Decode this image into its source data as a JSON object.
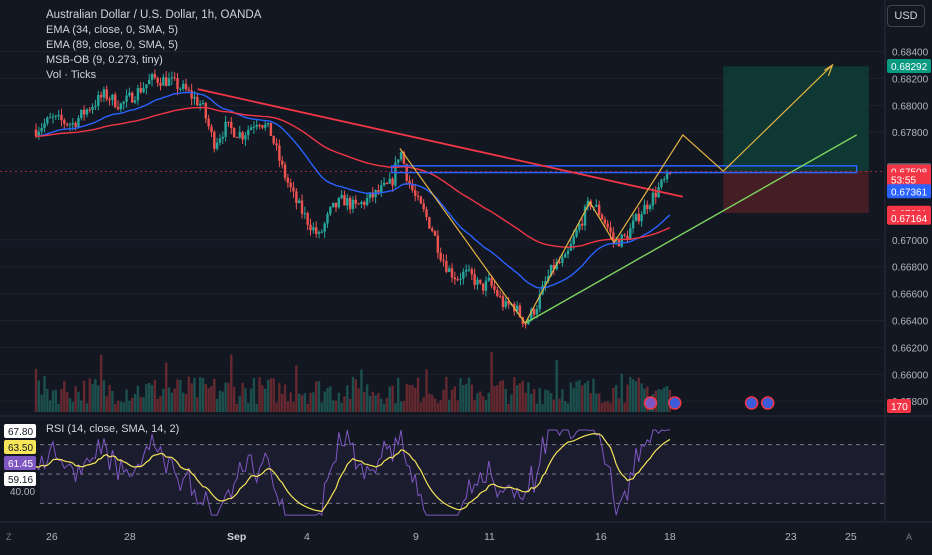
{
  "header": {
    "title": "Australian Dollar / U.S. Dollar, 1h, OANDA",
    "indicators": [
      "EMA (34, close, 0, SMA, 5)",
      "EMA (89, close, 0, SMA, 5)",
      "MSB-OB (9, 0.273, tiny)",
      "Vol · Ticks"
    ],
    "currency_button": "USD"
  },
  "rsi": {
    "label": "RSI (14, close, SMA, 14, 2)",
    "badges": [
      {
        "text": "67.80",
        "value": 67.8,
        "bg": "#ffffff",
        "fg": "#131722"
      },
      {
        "text": "63.50",
        "value": 63.5,
        "bg": "#f7e55a",
        "fg": "#131722"
      },
      {
        "text": "61.45",
        "value": 61.45,
        "bg": "#7e57c2",
        "fg": "#ffffff"
      },
      {
        "text": "59.16",
        "value": 59.16,
        "bg": "#ffffff",
        "fg": "#131722"
      }
    ],
    "tick": {
      "text": "40.00",
      "value": 40
    }
  },
  "corners": {
    "left": "Z",
    "right": "A"
  },
  "colors": {
    "background": "#131722",
    "up": "#26a69a",
    "down": "#ef5350",
    "ema34": "#2962ff",
    "ema89": "#f23645",
    "rsi": "#7e57c2",
    "rsi_ma": "#f7e55a",
    "zone": "#2962ff",
    "target": "#0f3b36",
    "stop": "#4a1e26"
  },
  "chart_data": {
    "type": "candlestick",
    "symbol": "AUDUSD",
    "timeframe": "1h",
    "x_ticks": [
      "26",
      "28",
      "Sep",
      "4",
      "9",
      "11",
      "16",
      "18",
      "23",
      "25"
    ],
    "y_ticks": [
      "0.68400",
      "0.68200",
      "0.68000",
      "0.67800",
      "0.67000",
      "0.66800",
      "0.66600",
      "0.66400",
      "0.66200",
      "0.66000",
      "0.65800"
    ],
    "ylim": [
      0.6572,
      0.6856
    ],
    "price_path": [
      [
        0,
        0.6782
      ],
      [
        4,
        0.679
      ],
      [
        9,
        0.6786
      ],
      [
        13,
        0.6798
      ],
      [
        17,
        0.6808
      ],
      [
        21,
        0.68
      ],
      [
        25,
        0.681
      ],
      [
        29,
        0.682
      ],
      [
        33,
        0.6818
      ],
      [
        37,
        0.6811
      ],
      [
        41,
        0.68
      ],
      [
        44,
        0.6772
      ],
      [
        47,
        0.6784
      ],
      [
        51,
        0.6778
      ],
      [
        55,
        0.679
      ],
      [
        58,
        0.678
      ],
      [
        61,
        0.6752
      ],
      [
        64,
        0.673
      ],
      [
        67,
        0.6715
      ],
      [
        70,
        0.6702
      ],
      [
        73,
        0.6722
      ],
      [
        76,
        0.673
      ],
      [
        79,
        0.6724
      ],
      [
        82,
        0.673
      ],
      [
        85,
        0.6736
      ],
      [
        88,
        0.6742
      ],
      [
        90,
        0.6768
      ],
      [
        92,
        0.6745
      ],
      [
        94,
        0.673
      ],
      [
        96,
        0.672
      ],
      [
        98,
        0.6708
      ],
      [
        100,
        0.669
      ],
      [
        102,
        0.6678
      ],
      [
        104,
        0.6672
      ],
      [
        106,
        0.6675
      ],
      [
        108,
        0.6672
      ],
      [
        110,
        0.6664
      ],
      [
        112,
        0.6668
      ],
      [
        114,
        0.666
      ],
      [
        116,
        0.665
      ],
      [
        118,
        0.6652
      ],
      [
        121,
        0.6638
      ],
      [
        124,
        0.6652
      ],
      [
        126,
        0.6668
      ],
      [
        128,
        0.668
      ],
      [
        131,
        0.6685
      ],
      [
        134,
        0.6708
      ],
      [
        137,
        0.6728
      ],
      [
        139,
        0.6722
      ],
      [
        141,
        0.6712
      ],
      [
        143,
        0.6698
      ],
      [
        146,
        0.6702
      ],
      [
        149,
        0.6718
      ],
      [
        152,
        0.673
      ],
      [
        155,
        0.6742
      ],
      [
        157,
        0.6748
      ]
    ],
    "x_range": [
      0,
      210
    ],
    "y_marker_x": 157,
    "price_labels": [
      {
        "text": "0.68292",
        "value": 0.68292,
        "bg": "#089981",
        "fg": "#ffffff"
      },
      {
        "text": "0.67518",
        "value": 0.67518,
        "bg": "#5d606b",
        "fg": "#ffffff"
      },
      {
        "text": "0.67508",
        "value": 0.67508,
        "bg": "#f23645",
        "fg": "#ffffff"
      },
      {
        "text": "53:55",
        "value": 0.6745,
        "bg": "#f23645",
        "fg": "#ffffff"
      },
      {
        "text": "0.67361",
        "value": 0.67361,
        "bg": "#2962ff",
        "fg": "#ffffff"
      },
      {
        "text": "0.67201",
        "value": 0.67201,
        "bg": "#f23645",
        "fg": "#ffffff"
      },
      {
        "text": "0.67164",
        "value": 0.67164,
        "bg": "#f23645",
        "fg": "#ffffff"
      }
    ],
    "volume_label": {
      "text": "170",
      "bg": "#f23645",
      "fg": "#ffffff"
    },
    "annotations": {
      "position_entry": 0.6751,
      "position_target": 0.6829,
      "position_stop": 0.672,
      "horizontal_zone": [
        0.675,
        0.6755
      ]
    }
  }
}
